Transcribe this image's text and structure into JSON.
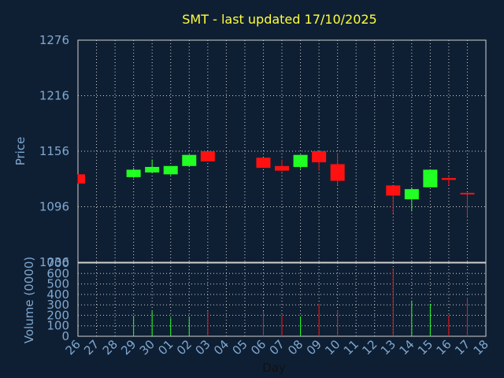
{
  "chart_data": {
    "title": "SMT - last updated 17/10/2025",
    "type": "candlestick",
    "xlabel": "Day",
    "price_panel": {
      "ylabel": "Price",
      "ylim": [
        1036,
        1276
      ],
      "yticks": [
        1036,
        1096,
        1156,
        1216,
        1276
      ]
    },
    "volume_panel": {
      "ylabel": "Volume (0000)",
      "ylim": [
        0,
        700
      ],
      "yticks": [
        0,
        100,
        200,
        300,
        400,
        500,
        600,
        700
      ]
    },
    "x_tick_labels": [
      "26",
      "27",
      "28",
      "29",
      "30",
      "01",
      "02",
      "03",
      "04",
      "05",
      "06",
      "07",
      "08",
      "09",
      "10",
      "11",
      "12",
      "13",
      "14",
      "15",
      "16",
      "17",
      "18"
    ],
    "grid": true,
    "candles": [
      {
        "day": "26",
        "open": 1131,
        "close": 1121,
        "high": 1131,
        "low": 1121,
        "volume": 0
      },
      {
        "day": "29",
        "open": 1128,
        "close": 1136,
        "high": 1138,
        "low": 1127,
        "volume": 195
      },
      {
        "day": "30",
        "open": 1133,
        "close": 1139,
        "high": 1147,
        "low": 1133,
        "volume": 240
      },
      {
        "day": "01",
        "open": 1131,
        "close": 1140,
        "high": 1140,
        "low": 1130,
        "volume": 175
      },
      {
        "day": "02",
        "open": 1140,
        "close": 1152,
        "high": 1152,
        "low": 1140,
        "volume": 180
      },
      {
        "day": "03",
        "open": 1156,
        "close": 1145,
        "high": 1156,
        "low": 1145,
        "volume": 240
      },
      {
        "day": "06",
        "open": 1149,
        "close": 1138,
        "high": 1149,
        "low": 1138,
        "volume": 240
      },
      {
        "day": "07",
        "open": 1140,
        "close": 1135,
        "high": 1147,
        "low": 1134,
        "volume": 200
      },
      {
        "day": "08",
        "open": 1139,
        "close": 1152,
        "high": 1152,
        "low": 1137,
        "volume": 190
      },
      {
        "day": "09",
        "open": 1156,
        "close": 1144,
        "high": 1156,
        "low": 1135,
        "volume": 310
      },
      {
        "day": "10",
        "open": 1142,
        "close": 1124,
        "high": 1154,
        "low": 1119,
        "volume": 250
      },
      {
        "day": "13",
        "open": 1119,
        "close": 1108,
        "high": 1119,
        "low": 1089,
        "volume": 650
      },
      {
        "day": "14",
        "open": 1104,
        "close": 1115,
        "high": 1117,
        "low": 1091,
        "volume": 340
      },
      {
        "day": "15",
        "open": 1117,
        "close": 1136,
        "high": 1136,
        "low": 1117,
        "volume": 310
      },
      {
        "day": "16",
        "open": 1127,
        "close": 1125,
        "high": 1128,
        "low": 1119,
        "volume": 200
      },
      {
        "day": "17",
        "open": 1111,
        "close": 1110,
        "high": 1111,
        "low": 1085,
        "volume": 370
      }
    ],
    "colors": {
      "up": "#22ff22",
      "down": "#ff1111",
      "background": "#0f1f33",
      "grid": "#d0d0d0",
      "title": "#ffff3b",
      "axis_text": "#7fa8d0"
    }
  }
}
